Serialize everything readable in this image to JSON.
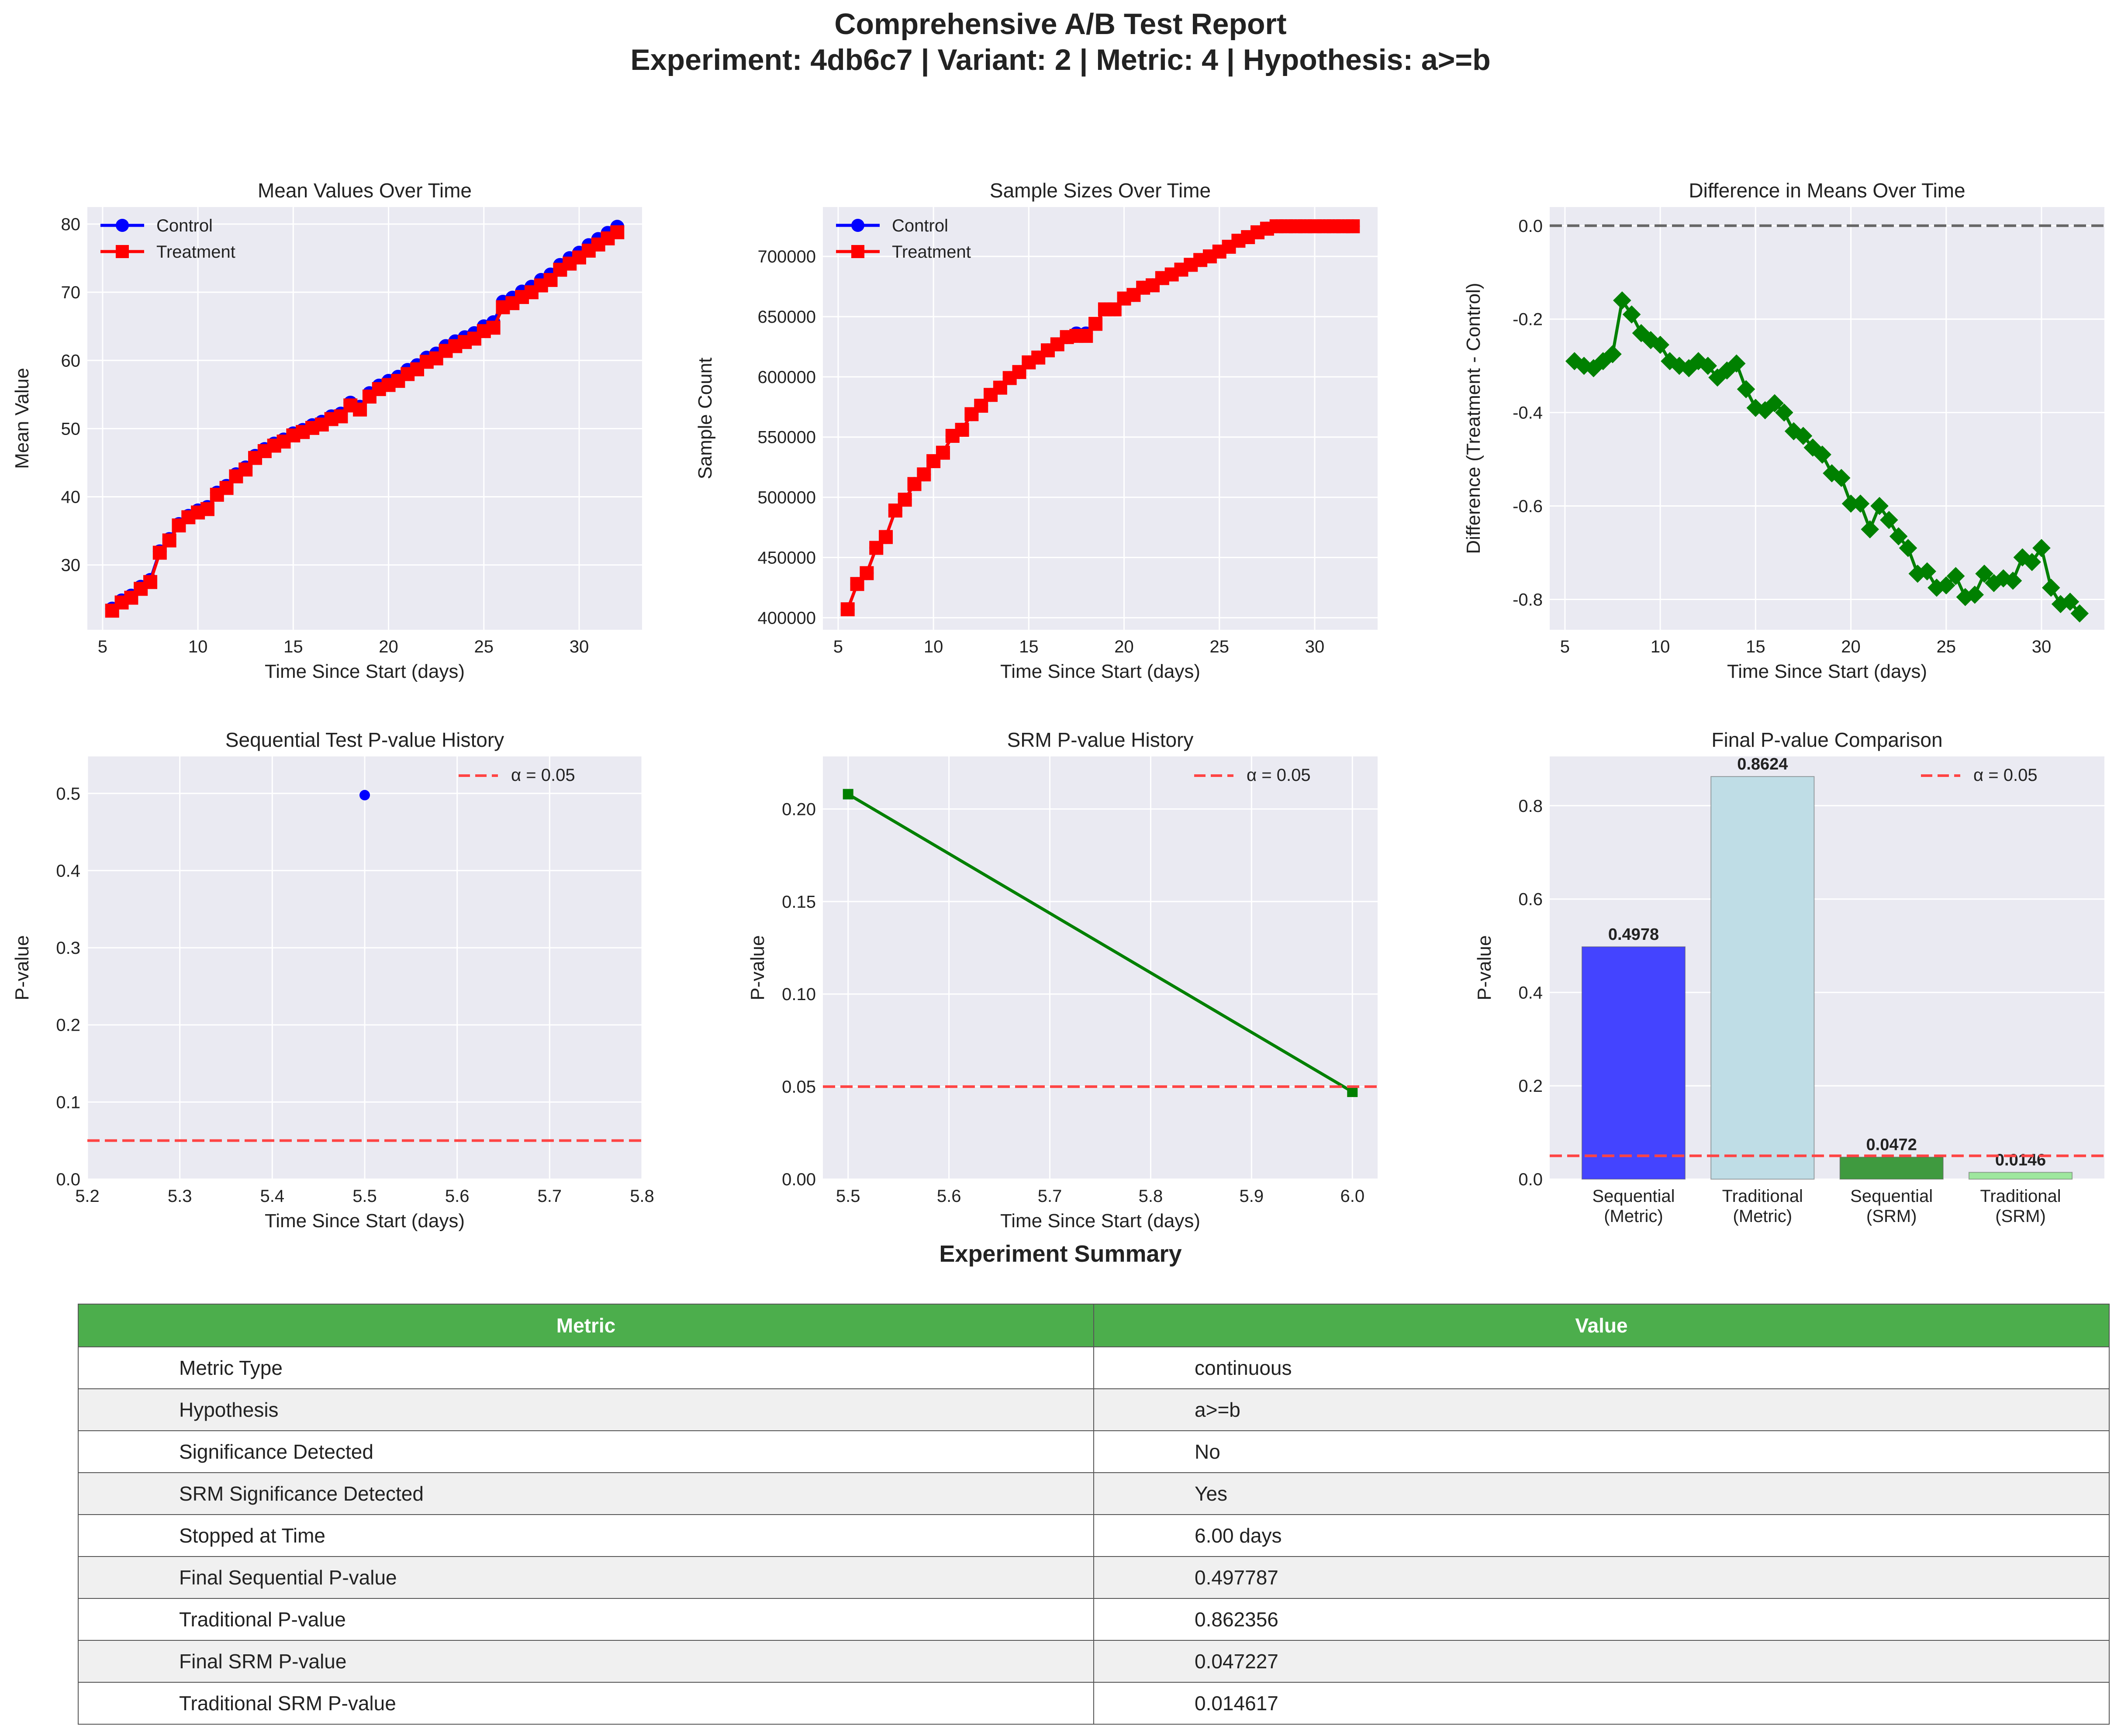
{
  "title": {
    "line1": "Comprehensive A/B Test Report",
    "line2": "Experiment: 4db6c7 | Variant: 2 | Metric: 4 | Hypothesis: a>=b"
  },
  "colors": {
    "panel_bg": "#eaeaf2",
    "control": "#0000ff",
    "treatment": "#ff0000",
    "diff": "#008000",
    "alpha_line": "#ff4444",
    "table_header": "#4cae4c"
  },
  "chart_data": [
    {
      "id": "means",
      "type": "line",
      "title": "Mean Values Over Time",
      "xlabel": "Time Since Start (days)",
      "ylabel": "Mean Value",
      "xlim": [
        4.2,
        33.3
      ],
      "ylim": [
        20.5,
        82.5
      ],
      "xticks": [
        5,
        10,
        15,
        20,
        25,
        30
      ],
      "yticks": [
        30,
        40,
        50,
        60,
        70,
        80
      ],
      "legend": "top-left",
      "grid": true,
      "series": [
        {
          "name": "Control",
          "marker": "circle",
          "color": "#0000ff",
          "x": [
            5.5,
            6,
            6.5,
            7,
            7.5,
            8,
            8.5,
            9,
            9.5,
            10,
            10.5,
            11,
            11.5,
            12,
            12.5,
            13,
            13.5,
            14,
            14.5,
            15,
            15.5,
            16,
            16.5,
            17,
            17.5,
            18,
            18.5,
            19,
            19.5,
            20,
            20.5,
            21,
            21.5,
            22,
            22.5,
            23,
            23.5,
            24,
            24.5,
            25,
            25.5,
            26,
            26.5,
            27,
            27.5,
            28,
            28.5,
            29,
            29.5,
            30,
            30.5,
            31,
            31.5,
            32
          ],
          "y": [
            23.6,
            24.8,
            25.5,
            26.8,
            27.8,
            32.0,
            33.8,
            36.0,
            37.2,
            38.0,
            38.5,
            40.6,
            41.6,
            43.3,
            44.3,
            46.0,
            47.0,
            47.8,
            48.4,
            49.3,
            49.8,
            50.5,
            51.0,
            51.8,
            52.2,
            53.8,
            53.2,
            55.2,
            56.3,
            57.0,
            57.6,
            58.6,
            59.3,
            60.4,
            61.0,
            62.1,
            62.8,
            63.4,
            64.0,
            65.0,
            65.6,
            68.6,
            69.2,
            70.1,
            70.8,
            71.8,
            72.6,
            74.0,
            75.0,
            75.8,
            76.9,
            77.8,
            78.7,
            79.6
          ]
        },
        {
          "name": "Treatment",
          "marker": "square",
          "color": "#ff0000",
          "x": [
            5.5,
            6,
            6.5,
            7,
            7.5,
            8,
            8.5,
            9,
            9.5,
            10,
            10.5,
            11,
            11.5,
            12,
            12.5,
            13,
            13.5,
            14,
            14.5,
            15,
            15.5,
            16,
            16.5,
            17,
            17.5,
            18,
            18.5,
            19,
            19.5,
            20,
            20.5,
            21,
            21.5,
            22,
            22.5,
            23,
            23.5,
            24,
            24.5,
            25,
            25.5,
            26,
            26.5,
            27,
            27.5,
            28,
            28.5,
            29,
            29.5,
            30,
            30.5,
            31,
            31.5,
            32
          ],
          "y": [
            23.3,
            24.5,
            25.2,
            26.5,
            27.5,
            31.8,
            33.6,
            35.8,
            37.0,
            37.7,
            38.2,
            40.3,
            41.3,
            43.0,
            44.0,
            45.7,
            46.7,
            47.5,
            48.1,
            49.0,
            49.5,
            50.1,
            50.6,
            51.4,
            51.8,
            53.4,
            52.8,
            54.7,
            55.8,
            56.4,
            57.0,
            58.0,
            58.7,
            59.8,
            60.3,
            61.4,
            62.1,
            62.7,
            63.2,
            64.3,
            64.8,
            67.8,
            68.4,
            69.3,
            70.0,
            71.0,
            71.8,
            73.3,
            74.2,
            75.1,
            76.1,
            77.0,
            77.9,
            78.8
          ]
        }
      ]
    },
    {
      "id": "samples",
      "type": "line",
      "title": "Sample Sizes Over Time",
      "xlabel": "Time Since Start (days)",
      "ylabel": "Sample Count",
      "xlim": [
        4.2,
        33.3
      ],
      "ylim": [
        390000,
        741000
      ],
      "xticks": [
        5,
        10,
        15,
        20,
        25,
        30
      ],
      "yticks": [
        400000,
        450000,
        500000,
        550000,
        600000,
        650000,
        700000
      ],
      "legend": "top-left",
      "grid": true,
      "series": [
        {
          "name": "Control",
          "marker": "circle",
          "color": "#0000ff",
          "x": [
            5.5,
            6,
            6.5,
            7,
            7.5,
            8,
            8.5,
            9,
            9.5,
            10,
            10.5,
            11,
            11.5,
            12,
            12.5,
            13,
            13.5,
            14,
            14.5,
            15,
            15.5,
            16,
            16.5,
            17,
            17.5,
            18,
            18.5,
            19,
            19.5,
            20,
            20.5,
            21,
            21.5,
            22,
            22.5,
            23,
            23.5,
            24,
            24.5,
            25,
            25.5,
            26,
            26.5,
            27,
            27.5,
            28,
            28.5,
            29,
            29.5,
            30,
            30.5,
            31,
            31.5,
            32
          ],
          "y": [
            407000,
            428000,
            437000,
            458000,
            467000,
            489000,
            498000,
            511000,
            519000,
            530000,
            537000,
            551000,
            556000,
            569000,
            576000,
            585000,
            591000,
            599000,
            604000,
            612000,
            616000,
            622000,
            627000,
            633000,
            636000,
            636000,
            644000,
            656000,
            656000,
            665000,
            668000,
            674000,
            676000,
            682000,
            685000,
            689000,
            693000,
            697000,
            700000,
            704000,
            708000,
            713000,
            716000,
            720000,
            723000,
            725000,
            725000,
            725000,
            725000,
            725000,
            725000,
            725000,
            725000,
            725000
          ]
        },
        {
          "name": "Treatment",
          "marker": "square",
          "color": "#ff0000",
          "x": [
            5.5,
            6,
            6.5,
            7,
            7.5,
            8,
            8.5,
            9,
            9.5,
            10,
            10.5,
            11,
            11.5,
            12,
            12.5,
            13,
            13.5,
            14,
            14.5,
            15,
            15.5,
            16,
            16.5,
            17,
            17.5,
            18,
            18.5,
            19,
            19.5,
            20,
            20.5,
            21,
            21.5,
            22,
            22.5,
            23,
            23.5,
            24,
            24.5,
            25,
            25.5,
            26,
            26.5,
            27,
            27.5,
            28,
            28.5,
            29,
            29.5,
            30,
            30.5,
            31,
            31.5,
            32
          ],
          "y": [
            407000,
            428000,
            437000,
            458000,
            467000,
            489000,
            498000,
            511000,
            519000,
            530000,
            537000,
            551000,
            556000,
            569000,
            576000,
            585000,
            591000,
            599000,
            604000,
            612000,
            616000,
            622000,
            627000,
            633000,
            634000,
            634000,
            644000,
            656000,
            656000,
            665000,
            668000,
            674000,
            676000,
            682000,
            685000,
            689000,
            693000,
            697000,
            700000,
            704000,
            708000,
            713000,
            716000,
            720000,
            723000,
            725000,
            725000,
            725000,
            725000,
            725000,
            725000,
            725000,
            725000,
            725000
          ]
        }
      ]
    },
    {
      "id": "diff",
      "type": "line",
      "title": "Difference in Means Over Time",
      "xlabel": "Time Since Start (days)",
      "ylabel": "Difference (Treatment - Control)",
      "xlim": [
        4.2,
        33.3
      ],
      "ylim": [
        -0.865,
        0.04
      ],
      "xticks": [
        5,
        10,
        15,
        20,
        25,
        30
      ],
      "yticks": [
        -0.8,
        -0.6,
        -0.4,
        -0.2,
        0.0
      ],
      "reference_line": 0,
      "grid": true,
      "series": [
        {
          "name": "",
          "marker": "diamond",
          "color": "#008000",
          "x": [
            5.5,
            6,
            6.5,
            7,
            7.5,
            8,
            8.5,
            9,
            9.5,
            10,
            10.5,
            11,
            11.5,
            12,
            12.5,
            13,
            13.5,
            14,
            14.5,
            15,
            15.5,
            16,
            16.5,
            17,
            17.5,
            18,
            18.5,
            19,
            19.5,
            20,
            20.5,
            21,
            21.5,
            22,
            22.5,
            23,
            23.5,
            24,
            24.5,
            25,
            25.5,
            26,
            26.5,
            27,
            27.5,
            28,
            28.5,
            29,
            29.5,
            30,
            30.5,
            31,
            31.5,
            32
          ],
          "y": [
            -0.29,
            -0.3,
            -0.305,
            -0.29,
            -0.275,
            -0.16,
            -0.19,
            -0.23,
            -0.245,
            -0.255,
            -0.29,
            -0.3,
            -0.305,
            -0.29,
            -0.3,
            -0.325,
            -0.31,
            -0.295,
            -0.35,
            -0.39,
            -0.395,
            -0.38,
            -0.4,
            -0.44,
            -0.45,
            -0.475,
            -0.49,
            -0.53,
            -0.54,
            -0.595,
            -0.595,
            -0.65,
            -0.6,
            -0.63,
            -0.665,
            -0.69,
            -0.745,
            -0.74,
            -0.775,
            -0.77,
            -0.75,
            -0.795,
            -0.79,
            -0.745,
            -0.765,
            -0.755,
            -0.76,
            -0.71,
            -0.72,
            -0.69,
            -0.775,
            -0.81,
            -0.805,
            -0.83
          ]
        }
      ]
    },
    {
      "id": "seq",
      "type": "scatter",
      "title": "Sequential Test P-value History",
      "xlabel": "Time Since Start (days)",
      "ylabel": "P-value",
      "xlim": [
        5.2,
        5.8
      ],
      "ylim": [
        0,
        0.548
      ],
      "xticks": [
        5.2,
        5.3,
        5.4,
        5.5,
        5.6,
        5.7,
        5.8
      ],
      "yticks": [
        0.0,
        0.1,
        0.2,
        0.3,
        0.4,
        0.5
      ],
      "alpha": 0.05,
      "alpha_label": "α = 0.05",
      "legend": "top-right",
      "grid": true,
      "series": [
        {
          "name": "",
          "marker": "circle",
          "color": "#0000ff",
          "x": [
            5.5
          ],
          "y": [
            0.4978
          ]
        }
      ]
    },
    {
      "id": "srm",
      "type": "line",
      "title": "SRM P-value History",
      "xlabel": "Time Since Start (days)",
      "ylabel": "P-value",
      "xlim": [
        5.475,
        6.025
      ],
      "ylim": [
        0,
        0.2284
      ],
      "xticks": [
        5.5,
        5.6,
        5.7,
        5.8,
        5.9,
        6.0
      ],
      "yticks": [
        0.0,
        0.05,
        0.1,
        0.15,
        0.2
      ],
      "alpha": 0.05,
      "alpha_label": "α = 0.05",
      "legend": "top-right",
      "grid": true,
      "series": [
        {
          "name": "",
          "marker": "square",
          "color": "#008000",
          "x": [
            5.5,
            6.0
          ],
          "y": [
            0.208,
            0.0472
          ]
        }
      ]
    },
    {
      "id": "final",
      "type": "bar",
      "title": "Final P-value Comparison",
      "ylabel": "P-value",
      "ylim": [
        0,
        0.9055
      ],
      "yticks": [
        0.0,
        0.2,
        0.4,
        0.6,
        0.8
      ],
      "alpha": 0.05,
      "alpha_label": "α = 0.05",
      "legend": "top-right",
      "grid": true,
      "categories": [
        [
          "Sequential",
          "(Metric)"
        ],
        [
          "Traditional",
          "(Metric)"
        ],
        [
          "Sequential",
          "(SRM)"
        ],
        [
          "Traditional",
          "(SRM)"
        ]
      ],
      "values": [
        0.4978,
        0.8624,
        0.0472,
        0.0146
      ],
      "labels": [
        "0.4978",
        "0.8624",
        "0.0472",
        "0.0146"
      ],
      "bar_colors": [
        "#4444ff",
        "#bfdde6",
        "#3f9a3f",
        "#9ee79e"
      ]
    }
  ],
  "summary": {
    "title": "Experiment Summary",
    "header": [
      "Metric",
      "Value"
    ],
    "rows": [
      [
        "Metric Type",
        "continuous"
      ],
      [
        "Hypothesis",
        "a>=b"
      ],
      [
        "Significance Detected",
        "No"
      ],
      [
        "SRM Significance Detected",
        "Yes"
      ],
      [
        "Stopped at Time",
        "6.00 days"
      ],
      [
        "Final Sequential P-value",
        "0.497787"
      ],
      [
        "Traditional P-value",
        "0.862356"
      ],
      [
        "Final SRM P-value",
        "0.047227"
      ],
      [
        "Traditional SRM P-value",
        "0.014617"
      ]
    ]
  }
}
